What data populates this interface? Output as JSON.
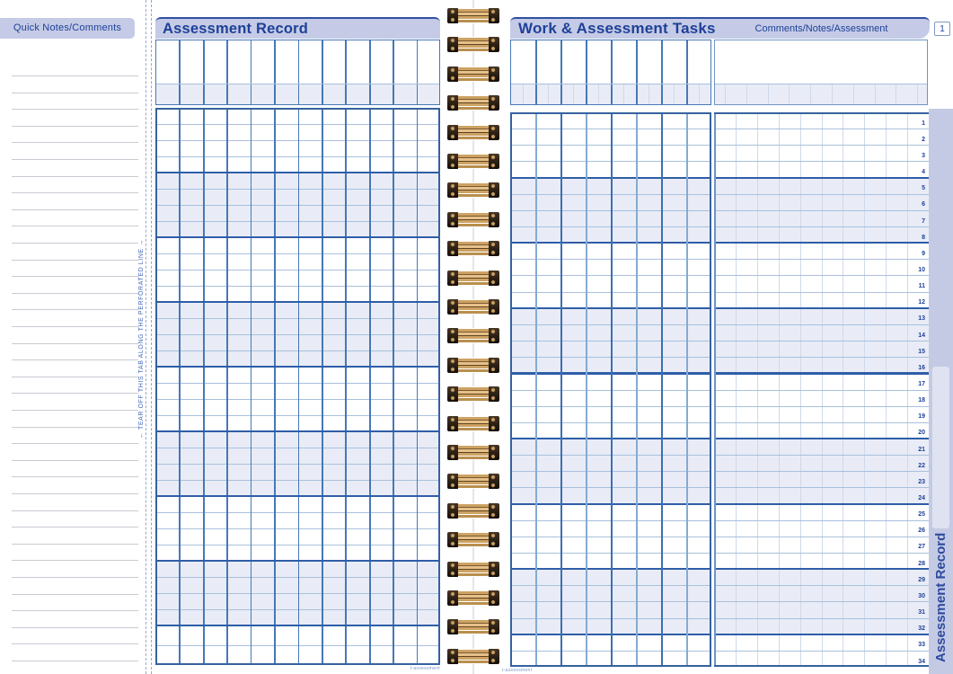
{
  "left_tab": {
    "title": "Quick Notes/Comments",
    "tear_text": "← TEAR OFF THIS TAB ALONG THE PERFORATED LINE →",
    "line_count": 36
  },
  "left_page": {
    "title": "Assessment Record",
    "columns": 12,
    "rows": 34,
    "group_size": 4,
    "watermark": "t-assessment"
  },
  "binding": {
    "coil_count": 23
  },
  "right_page": {
    "title": "Work & Assessment Tasks",
    "comments_title": "Comments/Notes/Assessment",
    "page_number": "1",
    "grid_columns": 8,
    "comment_columns": 10,
    "rows": 34,
    "group_size": 4,
    "row_numbers": [
      1,
      2,
      3,
      4,
      5,
      6,
      7,
      8,
      9,
      10,
      11,
      12,
      13,
      14,
      15,
      16,
      17,
      18,
      19,
      20,
      21,
      22,
      23,
      24,
      25,
      26,
      27,
      28,
      29,
      30,
      31,
      32,
      33,
      34
    ],
    "side_tab": "Assessment Record",
    "watermark": "t-assessment"
  },
  "colors": {
    "navy": "#1e4098",
    "band": "#c5cbe6",
    "grid_mid": "#4678b6",
    "grid_dark": "#2e5ea8",
    "grid_outer": "#35629f",
    "grid_light": "#a9c0dd",
    "shade": "#e9ecf6",
    "faint": "#cfd9ea",
    "comment_border": "#6f94c6",
    "col_light": "#85aad4",
    "col_dark": "#3d6fb2",
    "strip": "#c4cae4",
    "strip_inner": "#dfe3f1",
    "note_line": "#c9cbd3",
    "perforation": "#98a6ca",
    "watermark": "#7a97cc",
    "coil_gold": "#cda263",
    "coil_cap": "#2a2014"
  }
}
